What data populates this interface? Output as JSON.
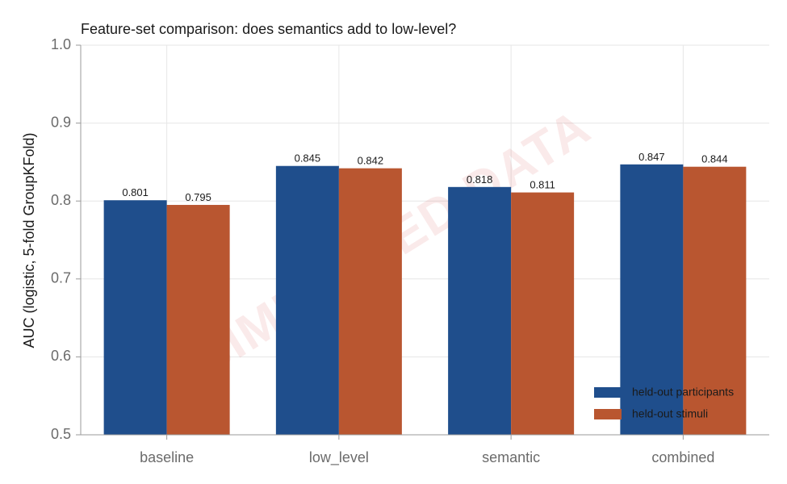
{
  "chart_data": {
    "type": "bar",
    "title": "Feature-set comparison: does semantics add to low-level?",
    "xlabel": "",
    "ylabel": "AUC (logistic, 5-fold GroupKFold)",
    "categories": [
      "baseline",
      "low_level",
      "semantic",
      "combined"
    ],
    "series": [
      {
        "name": "held-out participants",
        "color": "#1f4e8c",
        "values": [
          0.801,
          0.845,
          0.818,
          0.847
        ],
        "labels": [
          "0.801",
          "0.845",
          "0.818",
          "0.847"
        ]
      },
      {
        "name": "held-out stimuli",
        "color": "#b95630",
        "values": [
          0.795,
          0.842,
          0.811,
          0.844
        ],
        "labels": [
          "0.795",
          "0.842",
          "0.811",
          "0.844"
        ]
      }
    ],
    "ylim": [
      0.5,
      1.0
    ],
    "yticks": [
      0.5,
      0.6,
      0.7,
      0.8,
      0.9,
      1.0
    ],
    "ytick_labels": [
      "0.5",
      "0.6",
      "0.7",
      "0.8",
      "0.9",
      "1.0"
    ],
    "grid": true,
    "legend_position": "bottom-right",
    "watermark": "SIMULATED DATA"
  }
}
